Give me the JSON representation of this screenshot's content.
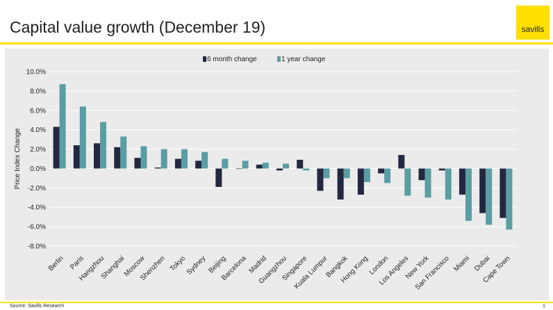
{
  "header": {
    "title": "Capital value growth (December 19)",
    "logo_text": "savills"
  },
  "footer": {
    "source": "Source: Savills Research",
    "page_number": "1"
  },
  "colors": {
    "brand_yellow": "#ffdf00",
    "series_6m": "#232840",
    "series_1y": "#5a9da3",
    "panel_bg": "#ebebeb",
    "grid": "#ffffff"
  },
  "chart_data": {
    "type": "bar",
    "ylabel": "Price Index Change",
    "ylim": [
      -8,
      10
    ],
    "yticks": [
      10,
      8,
      6,
      4,
      2,
      0,
      -2,
      -4,
      -6,
      -8
    ],
    "ytick_labels": [
      "10.0%",
      "8.0%",
      "6.0%",
      "4.0%",
      "2.0%",
      "0.0%",
      "-2.0%",
      "-4.0%",
      "-6.0%",
      "-8.0%"
    ],
    "grid": true,
    "legend_position": "top-center",
    "categories": [
      "Berlin",
      "Paris",
      "Hangzhou",
      "Shanghai",
      "Moscow",
      "Shenzhen",
      "Tokyo",
      "Sydney",
      "Beijing",
      "Barcelona",
      "Madrid",
      "Guangzhou",
      "Singapore",
      "Kuala Lumpur",
      "Bangkok",
      "Hong Kong",
      "London",
      "Los Angeles",
      "New York",
      "San Francisco",
      "Miami",
      "Dubai",
      "Cape Town"
    ],
    "series": [
      {
        "name": "6 month change",
        "color": "#232840",
        "values": [
          4.3,
          2.4,
          2.6,
          2.2,
          1.1,
          0.1,
          1.0,
          0.8,
          -1.9,
          0.0,
          0.4,
          -0.2,
          0.9,
          -2.3,
          -3.2,
          -2.7,
          -0.5,
          1.4,
          -1.2,
          -0.2,
          -2.7,
          -4.6,
          -5.1
        ]
      },
      {
        "name": "1 year change",
        "color": "#5a9da3",
        "values": [
          8.7,
          6.4,
          4.8,
          3.3,
          2.3,
          2.0,
          2.0,
          1.7,
          1.0,
          0.8,
          0.6,
          0.5,
          -0.2,
          -1.0,
          -1.0,
          -1.4,
          -1.5,
          -2.8,
          -3.0,
          -3.2,
          -5.4,
          -5.8,
          -6.3
        ]
      }
    ]
  }
}
